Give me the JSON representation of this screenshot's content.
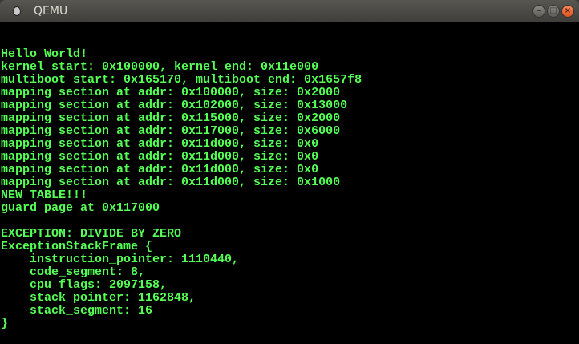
{
  "window": {
    "title": "QEMU",
    "controls": {
      "minimize": "–",
      "maximize": "□",
      "close": "×"
    }
  },
  "colors": {
    "terminal_text": "#55ff55",
    "terminal_bg": "#000000",
    "close_button": "#e95420"
  },
  "console": {
    "lines": [
      "",
      "",
      "Hello World!",
      "kernel start: 0x100000, kernel end: 0x11e000",
      "multiboot start: 0x165170, multiboot end: 0x1657f8",
      "mapping section at addr: 0x100000, size: 0x2000",
      "mapping section at addr: 0x102000, size: 0x13000",
      "mapping section at addr: 0x115000, size: 0x2000",
      "mapping section at addr: 0x117000, size: 0x6000",
      "mapping section at addr: 0x11d000, size: 0x0",
      "mapping section at addr: 0x11d000, size: 0x0",
      "mapping section at addr: 0x11d000, size: 0x0",
      "mapping section at addr: 0x11d000, size: 0x1000",
      "NEW TABLE!!!",
      "guard page at 0x117000",
      "",
      "EXCEPTION: DIVIDE BY ZERO",
      "ExceptionStackFrame {",
      "    instruction_pointer: 1110440,",
      "    code_segment: 8,",
      "    cpu_flags: 2097158,",
      "    stack_pointer: 1162848,",
      "    stack_segment: 16",
      "}"
    ]
  }
}
